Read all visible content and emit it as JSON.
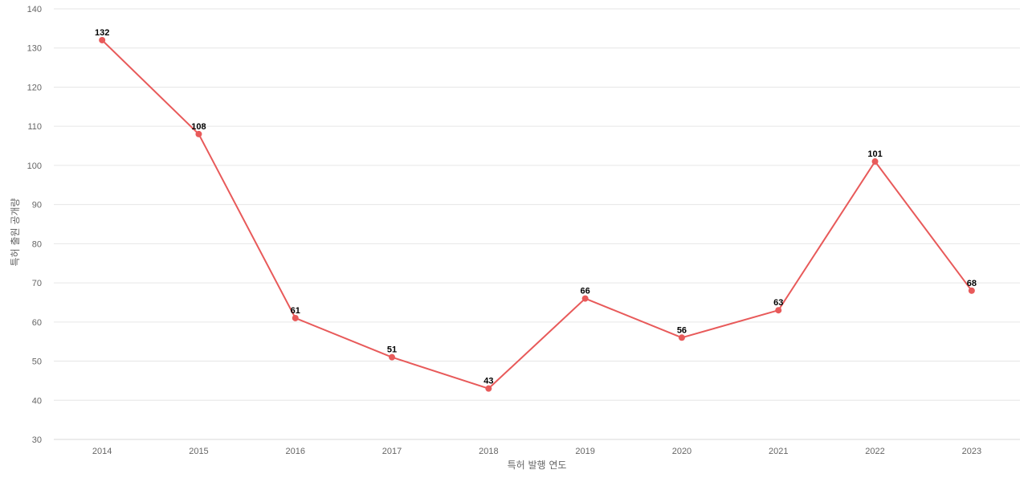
{
  "chart_data": {
    "type": "line",
    "title": "",
    "xlabel": "특허 발행 연도",
    "ylabel": "특허 출원 공개량",
    "categories": [
      "2014",
      "2015",
      "2016",
      "2017",
      "2018",
      "2019",
      "2020",
      "2021",
      "2022",
      "2023"
    ],
    "series": [
      {
        "values": [
          132,
          108,
          61,
          51,
          43,
          66,
          56,
          63,
          101,
          68
        ],
        "color": "#e85a5a"
      }
    ],
    "ylim": [
      30,
      140
    ],
    "yticks": [
      30,
      40,
      50,
      60,
      70,
      80,
      90,
      100,
      110,
      120,
      130,
      140
    ],
    "grid": true,
    "legend": "none",
    "data_labels": true
  }
}
